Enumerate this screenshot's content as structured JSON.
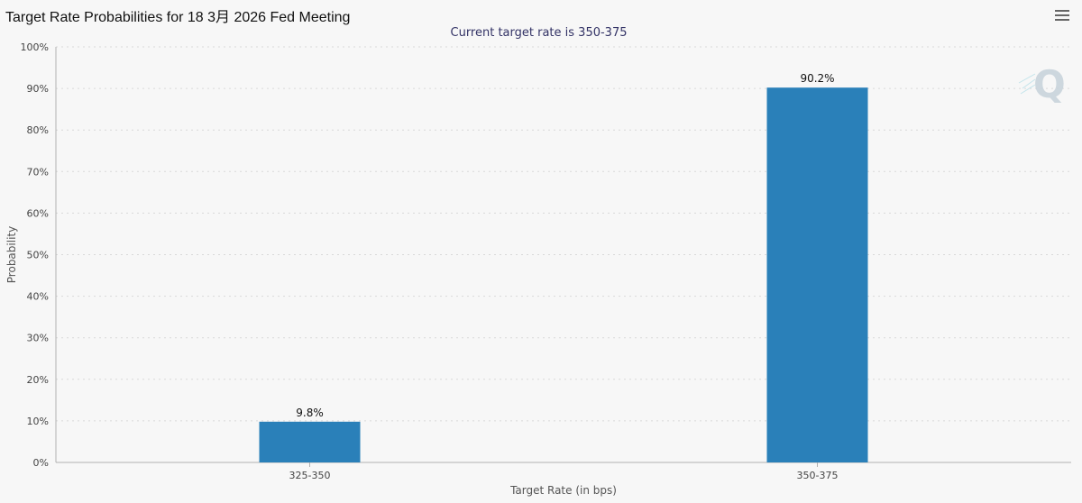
{
  "window": {
    "title": "Target Rate Probabilities for 18 3月 2026 Fed Meeting",
    "menu_icon": "hamburger-menu-icon"
  },
  "colors": {
    "bar": "#2a80b9",
    "grid": "#d9d9d9",
    "watermark": "#c9d4dc"
  },
  "chart_data": {
    "type": "bar",
    "title": "Target Rate Probabilities for 18 3月 2026 Fed Meeting",
    "subtitle": "Current target rate is 350-375",
    "categories": [
      "325-350",
      "350-375"
    ],
    "values": [
      9.8,
      90.2
    ],
    "data_labels": [
      "9.8%",
      "90.2%"
    ],
    "xlabel": "Target Rate (in bps)",
    "ylabel": "Probability",
    "ylim": [
      0,
      100
    ],
    "yticks": [
      "0%",
      "10%",
      "20%",
      "30%",
      "40%",
      "50%",
      "60%",
      "70%",
      "80%",
      "90%",
      "100%"
    ],
    "grid": true,
    "legend": "none"
  }
}
